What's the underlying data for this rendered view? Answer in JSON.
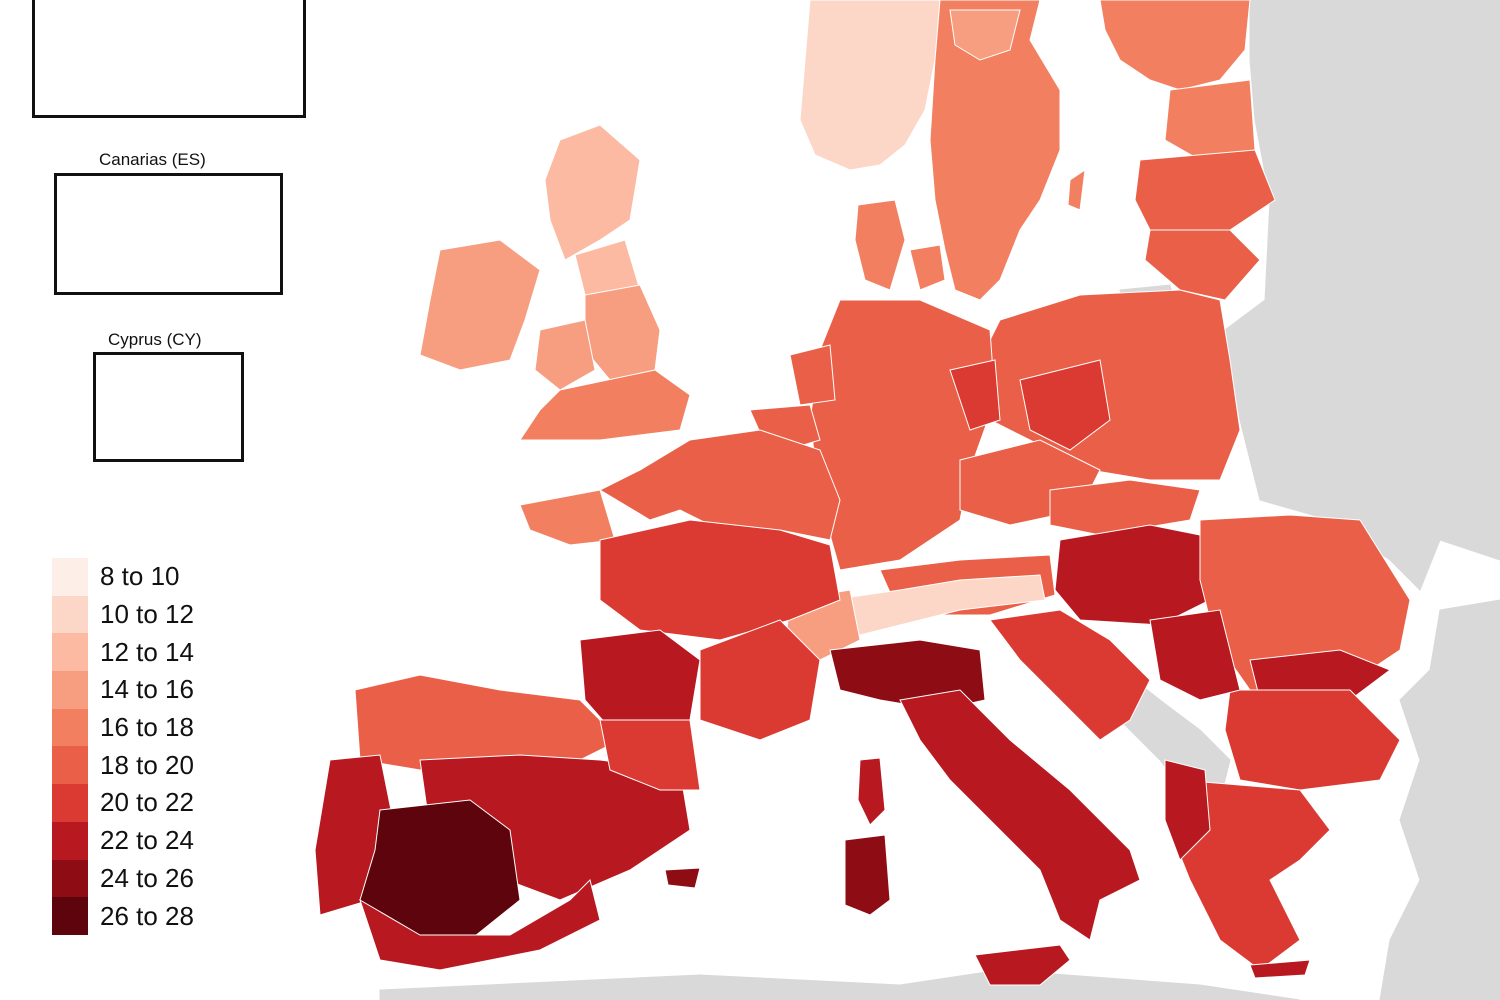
{
  "insets": [
    {
      "id": "top",
      "title": ""
    },
    {
      "id": "canarias",
      "title": "Canarias (ES)"
    },
    {
      "id": "cyprus",
      "title": "Cyprus (CY)"
    }
  ],
  "legend": {
    "classes": [
      {
        "label": "8 to 10",
        "color": "#fdeee8"
      },
      {
        "label": "10 to 12",
        "color": "#fcd6c6"
      },
      {
        "label": "12 to 14",
        "color": "#fbbaa1"
      },
      {
        "label": "14 to 16",
        "color": "#f79d80"
      },
      {
        "label": "16 to 18",
        "color": "#f27f60"
      },
      {
        "label": "18 to 20",
        "color": "#ea5f47"
      },
      {
        "label": "20 to 22",
        "color": "#db3a32"
      },
      {
        "label": "22 to 24",
        "color": "#b8181f"
      },
      {
        "label": "24 to 26",
        "color": "#8e0c14"
      },
      {
        "label": "26 to 28",
        "color": "#5e040c"
      }
    ]
  },
  "colors": {
    "sea": "#ffffff",
    "non_eu_land": "#d9d9d9",
    "border": "#7a7a7a"
  }
}
